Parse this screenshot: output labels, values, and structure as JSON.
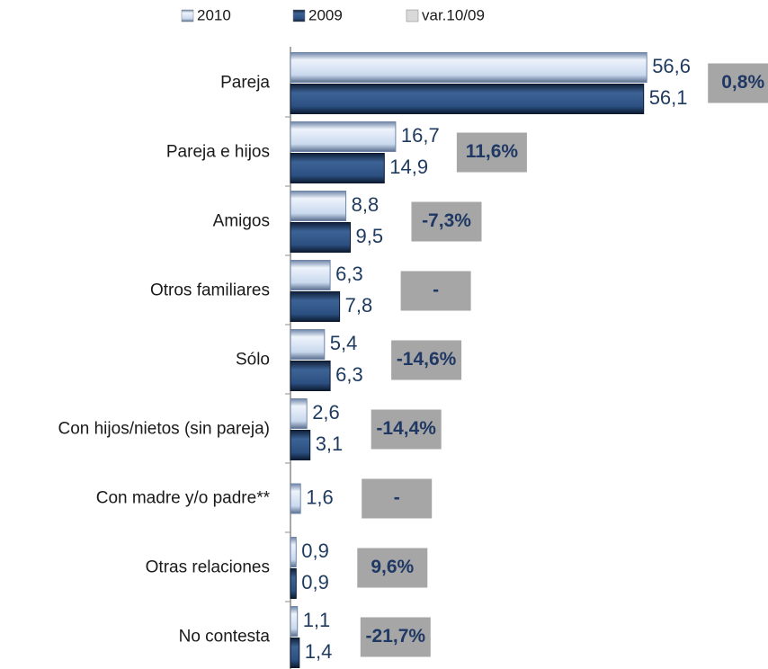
{
  "chart_data": {
    "type": "bar",
    "orientation": "horizontal",
    "categories": [
      "Pareja",
      "Pareja e hijos",
      "Amigos",
      "Otros familiares",
      "Sólo",
      "Con hijos/nietos (sin pareja)",
      "Con madre y/o padre**",
      "Otras relaciones",
      "No contesta"
    ],
    "series": [
      {
        "name": "2010",
        "color": "#c9d9ee",
        "values": [
          56.6,
          16.7,
          8.8,
          6.3,
          5.4,
          2.6,
          1.6,
          0.9,
          1.1
        ],
        "value_labels": [
          "56,6",
          "16,7",
          "8,8",
          "6,3",
          "5,4",
          "2,6",
          "1,6",
          "0,9",
          "1,1"
        ]
      },
      {
        "name": "2009",
        "color": "#2b4f80",
        "values": [
          56.1,
          14.9,
          9.5,
          7.8,
          6.3,
          3.1,
          null,
          0.9,
          1.4
        ],
        "value_labels": [
          "56,1",
          "14,9",
          "9,5",
          "7,8",
          "6,3",
          "3,1",
          null,
          "0,9",
          "1,4"
        ]
      },
      {
        "name": "var.10/09",
        "color": "#a6a6a6",
        "values": [
          0.8,
          11.6,
          -7.3,
          null,
          -14.6,
          -14.4,
          null,
          9.6,
          -21.7
        ],
        "value_labels": [
          "0,8%",
          "11,6%",
          "-7,3%",
          "-",
          "-14,6%",
          "-14,4%",
          "-",
          "9,6%",
          "-21,7%"
        ]
      }
    ]
  }
}
